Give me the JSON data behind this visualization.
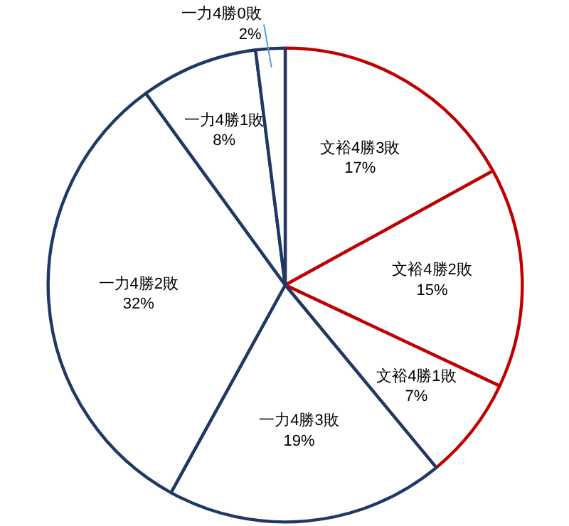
{
  "chart_data": {
    "type": "pie",
    "categories": [
      "文裕4勝3敗",
      "文裕4勝2敗",
      "文裕4勝1敗",
      "一力4勝3敗",
      "一力4勝2敗",
      "一力4勝1敗",
      "一力4勝0敗"
    ],
    "values": [
      17,
      15,
      7,
      19,
      32,
      8,
      2
    ],
    "value_labels": [
      "17%",
      "15%",
      "7%",
      "19%",
      "32%",
      "8%",
      "2%"
    ],
    "colors": [
      "#c00000",
      "#c00000",
      "#c00000",
      "#1f3864",
      "#1f3864",
      "#1f3864",
      "#1f3864"
    ]
  }
}
